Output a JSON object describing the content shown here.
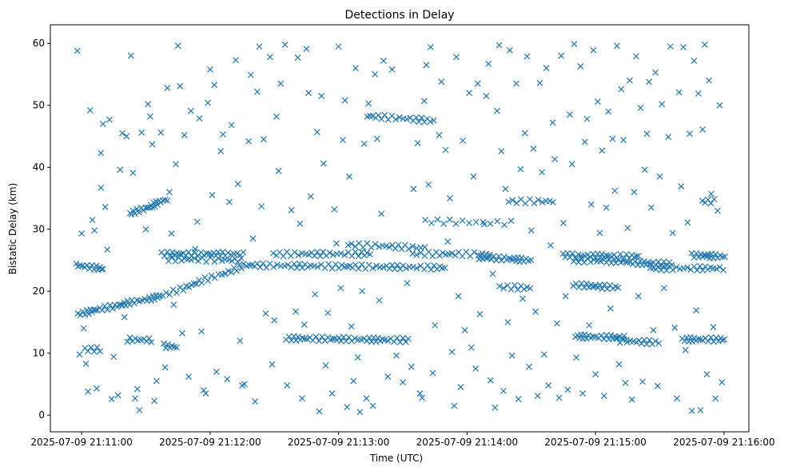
{
  "chart_data": {
    "type": "scatter",
    "title": "Detections in Delay",
    "xlabel": "Time (UTC)",
    "ylabel": "Bistatic Delay (km)",
    "x_unit": "seconds after 2025-07-09 21:11:00",
    "xlim": [
      -14.6,
      311.6
    ],
    "ylim": [
      -2.7,
      63
    ],
    "marker": "x",
    "color": "#1f77b4",
    "grid": false,
    "x_ticks": [
      {
        "value": 0,
        "label": "2025-07-09 21:11:00"
      },
      {
        "value": 60,
        "label": "2025-07-09 21:12:00"
      },
      {
        "value": 120,
        "label": "2025-07-09 21:13:00"
      },
      {
        "value": 180,
        "label": "2025-07-09 21:14:00"
      },
      {
        "value": 240,
        "label": "2025-07-09 21:15:00"
      },
      {
        "value": 300,
        "label": "2025-07-09 21:16:00"
      }
    ],
    "y_ticks": [
      {
        "value": 0,
        "label": "0"
      },
      {
        "value": 10,
        "label": "10"
      },
      {
        "value": 20,
        "label": "20"
      },
      {
        "value": 30,
        "label": "30"
      },
      {
        "value": 40,
        "label": "40"
      },
      {
        "value": 50,
        "label": "50"
      },
      {
        "value": 60,
        "label": "60"
      }
    ],
    "tracks": [
      {
        "t0": -2,
        "d0": 16.3,
        "t1": 37,
        "d1": 19.2,
        "n": 40
      },
      {
        "t0": 37,
        "d0": 19.2,
        "t1": 75,
        "d1": 24,
        "n": 28
      },
      {
        "t0": -2,
        "d0": 24.2,
        "t1": 10,
        "d1": 23.6,
        "n": 14
      },
      {
        "t0": 23,
        "d0": 32.5,
        "t1": 40,
        "d1": 34.8,
        "n": 22
      },
      {
        "t0": 37,
        "d0": 26,
        "t1": 75,
        "d1": 26,
        "n": 32
      },
      {
        "t0": 40,
        "d0": 25.2,
        "t1": 75,
        "d1": 25,
        "n": 22
      },
      {
        "t0": 22,
        "d0": 12.2,
        "t1": 32,
        "d1": 12.1,
        "n": 10
      },
      {
        "t0": 38,
        "d0": 11.2,
        "t1": 45,
        "d1": 11,
        "n": 7
      },
      {
        "t0": 2,
        "d0": 10.6,
        "t1": 8,
        "d1": 10.6,
        "n": 6
      },
      {
        "t0": 75,
        "d0": 24.2,
        "t1": 170,
        "d1": 23.8,
        "n": 65
      },
      {
        "t0": 90,
        "d0": 26,
        "t1": 135,
        "d1": 26,
        "n": 30
      },
      {
        "t0": 125,
        "d0": 27.5,
        "t1": 160,
        "d1": 27,
        "n": 22
      },
      {
        "t0": 95,
        "d0": 12.4,
        "t1": 152,
        "d1": 12.1,
        "n": 48
      },
      {
        "t0": 133,
        "d0": 48.3,
        "t1": 165,
        "d1": 47.5,
        "n": 22
      },
      {
        "t0": 155,
        "d0": 26,
        "t1": 190,
        "d1": 26,
        "n": 22
      },
      {
        "t0": 160,
        "d0": 31.3,
        "t1": 200,
        "d1": 31,
        "n": 14
      },
      {
        "t0": 185,
        "d0": 25.5,
        "t1": 210,
        "d1": 25,
        "n": 26
      },
      {
        "t0": 195,
        "d0": 20.7,
        "t1": 210,
        "d1": 20.5,
        "n": 10
      },
      {
        "t0": 200,
        "d0": 34.5,
        "t1": 220,
        "d1": 34.5,
        "n": 12
      },
      {
        "t0": 225,
        "d0": 25.8,
        "t1": 260,
        "d1": 25.6,
        "n": 30
      },
      {
        "t0": 230,
        "d0": 25,
        "t1": 255,
        "d1": 24.8,
        "n": 20
      },
      {
        "t0": 230,
        "d0": 21,
        "t1": 250,
        "d1": 20.6,
        "n": 20
      },
      {
        "t0": 230,
        "d0": 12.7,
        "t1": 255,
        "d1": 12.5,
        "n": 25
      },
      {
        "t0": 250,
        "d0": 12,
        "t1": 270,
        "d1": 11.7,
        "n": 15
      },
      {
        "t0": 255,
        "d0": 24.6,
        "t1": 275,
        "d1": 24.4,
        "n": 20
      },
      {
        "t0": 265,
        "d0": 23.7,
        "t1": 300,
        "d1": 23.7,
        "n": 25
      },
      {
        "t0": 285,
        "d0": 25.8,
        "t1": 300,
        "d1": 25.6,
        "n": 18
      },
      {
        "t0": 280,
        "d0": 12.2,
        "t1": 300,
        "d1": 12.2,
        "n": 20
      },
      {
        "t0": 290,
        "d0": 34.5,
        "t1": 296,
        "d1": 34.5,
        "n": 5
      }
    ],
    "points": [
      [
        -2,
        58.8
      ],
      [
        -1,
        9.8
      ],
      [
        0,
        29.3
      ],
      [
        1,
        14
      ],
      [
        2,
        8.3
      ],
      [
        3,
        3.8
      ],
      [
        4,
        49.2
      ],
      [
        5,
        31.5
      ],
      [
        6,
        29.8
      ],
      [
        7,
        4.3
      ],
      [
        9,
        36.7
      ],
      [
        9,
        42.3
      ],
      [
        10,
        47
      ],
      [
        11,
        33.6
      ],
      [
        12,
        26.7
      ],
      [
        13,
        47.7
      ],
      [
        14,
        2.6
      ],
      [
        15,
        9.4
      ],
      [
        17,
        3.2
      ],
      [
        18,
        39.6
      ],
      [
        19,
        45.5
      ],
      [
        20,
        15.8
      ],
      [
        21,
        45
      ],
      [
        23,
        58
      ],
      [
        24,
        39.1
      ],
      [
        25,
        2.7
      ],
      [
        26,
        4.2
      ],
      [
        27,
        0.8
      ],
      [
        28,
        45.6
      ],
      [
        30,
        30
      ],
      [
        31,
        50.2
      ],
      [
        32,
        48.2
      ],
      [
        33,
        43.7
      ],
      [
        34,
        2.3
      ],
      [
        35,
        5.5
      ],
      [
        37,
        45.6
      ],
      [
        39,
        7.7
      ],
      [
        40,
        52.8
      ],
      [
        41,
        36
      ],
      [
        42,
        29.3
      ],
      [
        43,
        17.8
      ],
      [
        44,
        40.5
      ],
      [
        45,
        59.6
      ],
      [
        46,
        53.1
      ],
      [
        47,
        13.2
      ],
      [
        48,
        45.2
      ],
      [
        50,
        6.2
      ],
      [
        51,
        49.1
      ],
      [
        53,
        26.8
      ],
      [
        54,
        31.2
      ],
      [
        55,
        47.9
      ],
      [
        56,
        13.5
      ],
      [
        57,
        4
      ],
      [
        58,
        3.5
      ],
      [
        59,
        50.4
      ],
      [
        60,
        55.8
      ],
      [
        61,
        35.5
      ],
      [
        62,
        53.3
      ],
      [
        63,
        7
      ],
      [
        65,
        42.6
      ],
      [
        66,
        45.3
      ],
      [
        67,
        22.8
      ],
      [
        68,
        5.8
      ],
      [
        69,
        34.4
      ],
      [
        70,
        46.8
      ],
      [
        72,
        57.3
      ],
      [
        73,
        37.3
      ],
      [
        74,
        12
      ],
      [
        75,
        4.8
      ],
      [
        76,
        5
      ],
      [
        78,
        44.2
      ],
      [
        79,
        54.9
      ],
      [
        80,
        28.5
      ],
      [
        81,
        2.2
      ],
      [
        82,
        52.2
      ],
      [
        83,
        59.5
      ],
      [
        84,
        33.7
      ],
      [
        85,
        44.5
      ],
      [
        86,
        16.4
      ],
      [
        88,
        57.8
      ],
      [
        89,
        8.2
      ],
      [
        90,
        15.3
      ],
      [
        91,
        48.2
      ],
      [
        92,
        39.4
      ],
      [
        93,
        53.5
      ],
      [
        95,
        59.8
      ],
      [
        96,
        4.8
      ],
      [
        98,
        33.1
      ],
      [
        100,
        16.7
      ],
      [
        101,
        57.7
      ],
      [
        102,
        30.9
      ],
      [
        103,
        2.7
      ],
      [
        104,
        14.6
      ],
      [
        105,
        59.1
      ],
      [
        106,
        52
      ],
      [
        107,
        35.3
      ],
      [
        109,
        19.5
      ],
      [
        110,
        45.7
      ],
      [
        111,
        0.6
      ],
      [
        112,
        51.5
      ],
      [
        113,
        40.6
      ],
      [
        114,
        8
      ],
      [
        115,
        16.5
      ],
      [
        117,
        3.5
      ],
      [
        118,
        33.2
      ],
      [
        119,
        27.7
      ],
      [
        120,
        59.5
      ],
      [
        121,
        20.5
      ],
      [
        122,
        44.4
      ],
      [
        123,
        50.8
      ],
      [
        124,
        1.3
      ],
      [
        125,
        38.5
      ],
      [
        126,
        14.3
      ],
      [
        127,
        5.5
      ],
      [
        128,
        56
      ],
      [
        129,
        9.3
      ],
      [
        130,
        0.5
      ],
      [
        131,
        20
      ],
      [
        132,
        43.8
      ],
      [
        133,
        2.7
      ],
      [
        134,
        50.3
      ],
      [
        136,
        1.5
      ],
      [
        137,
        55
      ],
      [
        138,
        44.6
      ],
      [
        139,
        18.5
      ],
      [
        140,
        32.5
      ],
      [
        141,
        57.2
      ],
      [
        143,
        6.2
      ],
      [
        145,
        55.8
      ],
      [
        147,
        9.6
      ],
      [
        150,
        5.3
      ],
      [
        152,
        21.3
      ],
      [
        154,
        7.8
      ],
      [
        155,
        36.5
      ],
      [
        157,
        43.9
      ],
      [
        158,
        3.5
      ],
      [
        159,
        2.8
      ],
      [
        160,
        50.7
      ],
      [
        161,
        56.5
      ],
      [
        162,
        37.2
      ],
      [
        163,
        59.4
      ],
      [
        164,
        6.8
      ],
      [
        165,
        14.5
      ],
      [
        167,
        45.2
      ],
      [
        168,
        53.8
      ],
      [
        170,
        42.8
      ],
      [
        171,
        28
      ],
      [
        172,
        35
      ],
      [
        173,
        10.2
      ],
      [
        174,
        1.5
      ],
      [
        175,
        57.8
      ],
      [
        176,
        19.2
      ],
      [
        177,
        4.5
      ],
      [
        178,
        44.3
      ],
      [
        179,
        13.7
      ],
      [
        181,
        52
      ],
      [
        182,
        10.9
      ],
      [
        183,
        38.5
      ],
      [
        184,
        7.5
      ],
      [
        185,
        53.5
      ],
      [
        186,
        16.3
      ],
      [
        188,
        30.8
      ],
      [
        189,
        51.5
      ],
      [
        190,
        56.7
      ],
      [
        191,
        5.6
      ],
      [
        192,
        22.8
      ],
      [
        193,
        1.2
      ],
      [
        194,
        49.1
      ],
      [
        195,
        59.7
      ],
      [
        196,
        42.6
      ],
      [
        197,
        3.9
      ],
      [
        198,
        36.5
      ],
      [
        199,
        15
      ],
      [
        200,
        58.9
      ],
      [
        201,
        9.6
      ],
      [
        203,
        53.5
      ],
      [
        204,
        2.6
      ],
      [
        205,
        39.7
      ],
      [
        206,
        18.8
      ],
      [
        207,
        45.5
      ],
      [
        208,
        57.9
      ],
      [
        209,
        7.8
      ],
      [
        210,
        29.8
      ],
      [
        211,
        43
      ],
      [
        212,
        16.7
      ],
      [
        213,
        3.1
      ],
      [
        214,
        53.6
      ],
      [
        215,
        39.2
      ],
      [
        216,
        9.8
      ],
      [
        217,
        56
      ],
      [
        218,
        4.8
      ],
      [
        219,
        27.4
      ],
      [
        220,
        47.2
      ],
      [
        221,
        41.3
      ],
      [
        222,
        14.8
      ],
      [
        223,
        2.8
      ],
      [
        224,
        58
      ],
      [
        225,
        31
      ],
      [
        226,
        19.2
      ],
      [
        227,
        4.1
      ],
      [
        228,
        48.5
      ],
      [
        229,
        40.5
      ],
      [
        230,
        59.9
      ],
      [
        231,
        9.3
      ],
      [
        233,
        56.3
      ],
      [
        234,
        3.5
      ],
      [
        235,
        44.1
      ],
      [
        236,
        47.8
      ],
      [
        237,
        14.5
      ],
      [
        238,
        34
      ],
      [
        239,
        58.9
      ],
      [
        240,
        6.6
      ],
      [
        241,
        50.6
      ],
      [
        242,
        29.4
      ],
      [
        243,
        42.7
      ],
      [
        244,
        3.1
      ],
      [
        245,
        33.5
      ],
      [
        246,
        49
      ],
      [
        247,
        17.2
      ],
      [
        248,
        44.6
      ],
      [
        249,
        36.2
      ],
      [
        250,
        59.6
      ],
      [
        251,
        8.2
      ],
      [
        252,
        52.6
      ],
      [
        253,
        44.4
      ],
      [
        254,
        5.2
      ],
      [
        255,
        30.2
      ],
      [
        256,
        54
      ],
      [
        257,
        2.5
      ],
      [
        258,
        36
      ],
      [
        259,
        57.9
      ],
      [
        260,
        19.2
      ],
      [
        261,
        49.6
      ],
      [
        262,
        5.4
      ],
      [
        263,
        39.6
      ],
      [
        264,
        45.4
      ],
      [
        265,
        53.8
      ],
      [
        266,
        33.5
      ],
      [
        267,
        13.7
      ],
      [
        268,
        55.3
      ],
      [
        269,
        4.7
      ],
      [
        270,
        38.5
      ],
      [
        271,
        50.2
      ],
      [
        272,
        20.5
      ],
      [
        274,
        44.9
      ],
      [
        275,
        59.5
      ],
      [
        276,
        29.4
      ],
      [
        277,
        14.1
      ],
      [
        278,
        2.7
      ],
      [
        279,
        52.1
      ],
      [
        280,
        36.9
      ],
      [
        281,
        59.4
      ],
      [
        282,
        10.5
      ],
      [
        283,
        31.1
      ],
      [
        284,
        45.4
      ],
      [
        285,
        0.7
      ],
      [
        286,
        57.2
      ],
      [
        287,
        16.9
      ],
      [
        288,
        51.9
      ],
      [
        289,
        0.8
      ],
      [
        290,
        46.1
      ],
      [
        291,
        59.8
      ],
      [
        292,
        6.6
      ],
      [
        293,
        54
      ],
      [
        294,
        35.7
      ],
      [
        295,
        14.2
      ],
      [
        296,
        2.7
      ],
      [
        297,
        33
      ],
      [
        298,
        50
      ],
      [
        299,
        5.3
      ]
    ]
  }
}
